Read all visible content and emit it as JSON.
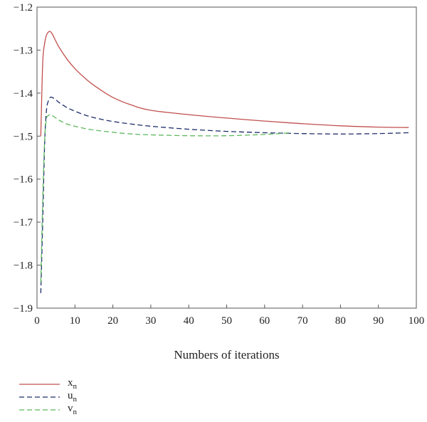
{
  "chart_data": {
    "type": "line",
    "xlabel": "Numbers of iterations",
    "ylabel": "",
    "xlim": [
      0,
      100
    ],
    "ylim": [
      -1.9,
      -1.2
    ],
    "xticks": [
      0,
      10,
      20,
      30,
      40,
      50,
      60,
      70,
      80,
      90,
      100
    ],
    "yticks": [
      -1.9,
      -1.8,
      -1.7,
      -1.6,
      -1.5,
      -1.4,
      -1.3,
      -1.2
    ],
    "grid": false,
    "legend_position": "bottom-left",
    "series": [
      {
        "name": "x",
        "subscript": "n",
        "color": "#c0504d",
        "dash": "solid",
        "x": [
          1,
          1.5,
          2,
          2.5,
          3,
          3.5,
          4,
          5,
          6,
          8,
          10,
          13,
          16,
          20,
          25,
          30,
          40,
          50,
          60,
          70,
          80,
          90,
          98
        ],
        "y": [
          -1.5,
          -1.33,
          -1.285,
          -1.265,
          -1.258,
          -1.257,
          -1.262,
          -1.28,
          -1.296,
          -1.322,
          -1.343,
          -1.368,
          -1.388,
          -1.41,
          -1.428,
          -1.44,
          -1.45,
          -1.458,
          -1.465,
          -1.471,
          -1.476,
          -1.479,
          -1.48
        ]
      },
      {
        "name": "u",
        "subscript": "n",
        "color": "#1f2d6b",
        "dash": "dashed",
        "x": [
          1,
          1.5,
          2,
          2.5,
          3,
          3.5,
          4,
          5,
          6,
          8,
          10,
          13,
          16,
          20,
          25,
          30,
          40,
          50,
          60,
          70,
          80,
          90,
          98
        ],
        "y": [
          -1.865,
          -1.7,
          -1.52,
          -1.44,
          -1.418,
          -1.41,
          -1.41,
          -1.416,
          -1.423,
          -1.434,
          -1.442,
          -1.452,
          -1.459,
          -1.466,
          -1.472,
          -1.477,
          -1.484,
          -1.489,
          -1.492,
          -1.494,
          -1.495,
          -1.494,
          -1.492
        ]
      },
      {
        "name": "v",
        "subscript": "n",
        "color": "#5cb85c",
        "dash": "dashed",
        "x": [
          1,
          1.5,
          2,
          2.5,
          3,
          3.5,
          4,
          5,
          6,
          8,
          10,
          13,
          16,
          20,
          25,
          30,
          40,
          50,
          60,
          67
        ],
        "y": [
          -1.84,
          -1.65,
          -1.51,
          -1.46,
          -1.452,
          -1.45,
          -1.452,
          -1.458,
          -1.464,
          -1.472,
          -1.477,
          -1.483,
          -1.487,
          -1.491,
          -1.495,
          -1.497,
          -1.499,
          -1.499,
          -1.496,
          -1.492
        ]
      }
    ]
  }
}
